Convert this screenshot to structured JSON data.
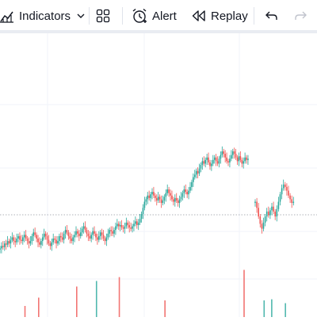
{
  "toolbar": {
    "indicators_label": "Indicators",
    "alert_label": "Alert",
    "replay_label": "Replay",
    "icons": {
      "indicators": "bar-chart-plus-icon",
      "dropdown": "chevron-down-icon",
      "layouts": "grid-layout-icon",
      "alert": "alarm-clock-plus-icon",
      "replay": "rewind-icon",
      "undo": "undo-arrow-icon",
      "redo": "redo-arrow-icon"
    },
    "colors": {
      "text": "#131722",
      "disabled": "#c1c4cd",
      "separator": "#e0e3eb"
    }
  },
  "chart_data": {
    "type": "candlestick",
    "colors": {
      "up": "#26a69a",
      "down": "#ef5350",
      "gridlines": "#f0f3fa",
      "price_line": "#9598a1"
    },
    "gridlines": true,
    "price_line": "dotted horizontal",
    "closes": [
      312,
      314,
      313,
      316,
      315,
      318,
      316,
      319,
      321,
      318,
      317,
      320,
      322,
      319,
      318,
      321,
      323,
      320,
      318,
      316,
      318,
      322,
      325,
      323,
      320,
      317,
      315,
      318,
      321,
      324,
      322,
      319,
      316,
      314,
      317,
      320,
      319,
      316,
      318,
      322,
      321,
      319,
      324,
      327,
      325,
      322,
      320,
      318,
      321,
      323,
      326,
      324,
      322,
      325,
      328,
      330,
      327,
      324,
      322,
      320,
      323,
      326,
      324,
      321,
      319,
      322,
      325,
      323,
      320,
      318,
      321,
      324,
      327,
      326,
      324,
      327,
      330,
      332,
      330,
      331,
      329,
      328,
      330,
      333,
      331,
      329,
      328,
      330,
      332,
      334,
      331,
      333,
      336,
      340,
      345,
      350,
      352,
      355,
      353,
      356,
      358,
      355,
      353,
      351,
      354,
      352,
      349,
      351,
      354,
      357,
      360,
      357,
      355,
      352,
      350,
      353,
      351,
      349,
      352,
      354,
      357,
      360,
      358,
      356,
      359,
      362,
      366,
      370,
      372,
      375,
      373,
      377,
      380,
      383,
      381,
      384,
      386,
      382,
      379,
      381,
      384,
      386,
      383,
      381,
      385,
      388,
      391,
      389,
      386,
      383,
      382,
      385,
      388,
      391,
      389,
      386,
      383,
      387,
      384,
      381,
      383,
      386,
      384,
      385
    ],
    "closes_after_gap": [
      350,
      345,
      338,
      332,
      328,
      333,
      338,
      342,
      339,
      343,
      346,
      342,
      338,
      344,
      350,
      356,
      361,
      364,
      362,
      359,
      355,
      352,
      349,
      350
    ],
    "volume_spikes": [
      {
        "after_bar": 16,
        "color": "down",
        "level": 0.2
      },
      {
        "after_bar": 25,
        "color": "down",
        "level": 0.35
      },
      {
        "after_bar": 50,
        "color": "down",
        "level": 0.55
      },
      {
        "after_bar": 63,
        "color": "up",
        "level": 0.65
      },
      {
        "after_bar": 78,
        "color": "down",
        "level": 0.72
      },
      {
        "after_bar": 108,
        "color": "down",
        "level": 0.3
      },
      {
        "after_bar": 160,
        "color": "down",
        "level": 0.85
      },
      {
        "after_bar": 169,
        "color": "up",
        "level": 0.3
      },
      {
        "after_bar": 174,
        "color": "up",
        "level": 0.32
      },
      {
        "after_bar": 183,
        "color": "up",
        "level": 0.25
      }
    ]
  }
}
